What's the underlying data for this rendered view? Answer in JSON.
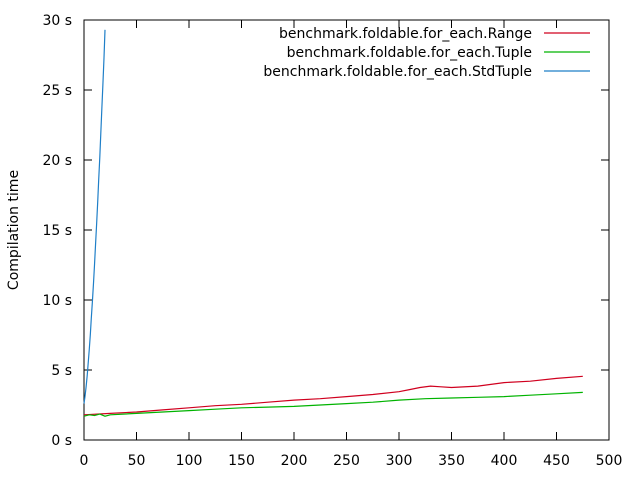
{
  "chart_data": {
    "type": "line",
    "title": "",
    "xlabel": "",
    "ylabel": "Compilation time",
    "xlim": [
      0,
      500
    ],
    "ylim": [
      0,
      30
    ],
    "x_ticks": [
      "0",
      "50",
      "100",
      "150",
      "200",
      "250",
      "300",
      "350",
      "400",
      "450",
      "500"
    ],
    "y_ticks": [
      "0 s",
      "5 s",
      "10 s",
      "15 s",
      "20 s",
      "25 s",
      "30 s"
    ],
    "grid": false,
    "legend_position": "top-right",
    "series": [
      {
        "name": "benchmark.foldable.for_each.Range",
        "color": "#d0001f",
        "x": [
          0,
          25,
          50,
          75,
          100,
          125,
          150,
          175,
          200,
          225,
          250,
          275,
          300,
          310,
          320,
          330,
          340,
          350,
          375,
          400,
          425,
          450,
          475
        ],
        "y": [
          1.8,
          1.9,
          2.0,
          2.15,
          2.3,
          2.45,
          2.55,
          2.7,
          2.85,
          2.95,
          3.1,
          3.25,
          3.45,
          3.6,
          3.75,
          3.85,
          3.8,
          3.75,
          3.85,
          4.1,
          4.2,
          4.4,
          4.55
        ]
      },
      {
        "name": "benchmark.foldable.for_each.Tuple",
        "color": "#00b300",
        "x": [
          0,
          5,
          10,
          15,
          20,
          25,
          50,
          75,
          100,
          125,
          150,
          175,
          200,
          225,
          250,
          275,
          300,
          325,
          350,
          375,
          400,
          425,
          450,
          475
        ],
        "y": [
          1.7,
          1.8,
          1.75,
          1.85,
          1.7,
          1.8,
          1.9,
          2.0,
          2.1,
          2.2,
          2.3,
          2.35,
          2.4,
          2.5,
          2.6,
          2.7,
          2.85,
          2.95,
          3.0,
          3.05,
          3.1,
          3.2,
          3.3,
          3.4
        ]
      },
      {
        "name": "benchmark.foldable.for_each.StdTuple",
        "color": "#1f7fc8",
        "x": [
          0,
          1,
          2,
          3,
          4,
          5,
          6,
          7,
          8,
          9,
          10,
          11,
          12,
          13,
          14,
          15,
          16,
          17,
          18,
          19,
          20
        ],
        "y": [
          2.6,
          3.1,
          3.8,
          4.6,
          5.5,
          6.5,
          7.5,
          8.7,
          9.9,
          11.2,
          12.5,
          13.9,
          15.4,
          17.0,
          18.6,
          20.2,
          21.9,
          23.6,
          25.4,
          27.3,
          29.3
        ]
      }
    ]
  }
}
